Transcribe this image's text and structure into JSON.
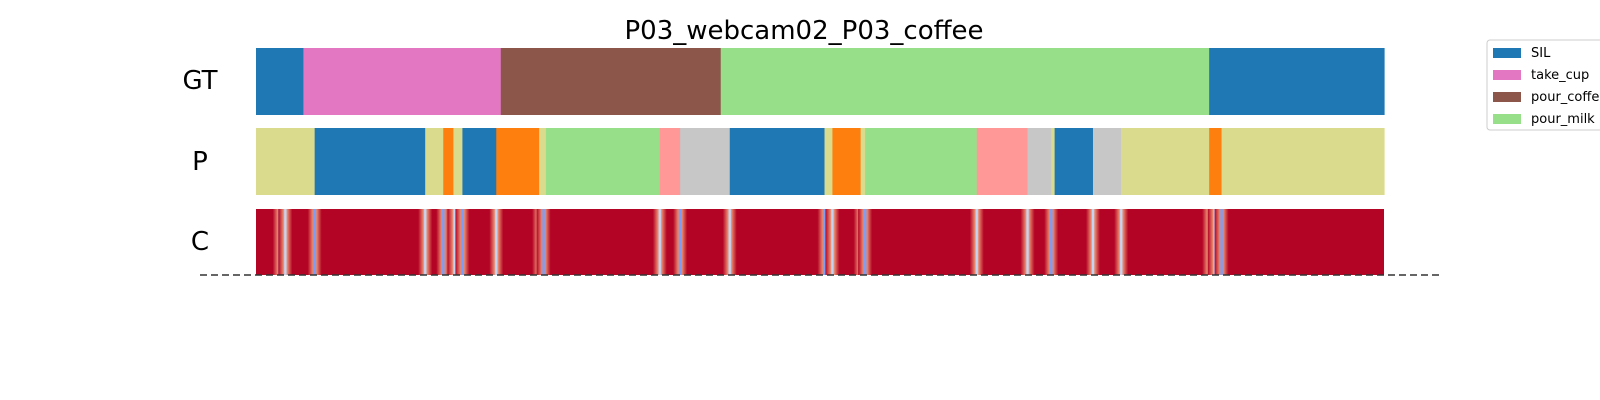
{
  "chart_data": {
    "type": "segmentation",
    "title": "P03_webcam02_P03_coffee",
    "x_domain": [
      0,
      1000
    ],
    "rows": [
      {
        "label": "GT",
        "segments": [
          {
            "start": 0,
            "end": 42,
            "label": "SIL",
            "color": "#1f77b4"
          },
          {
            "start": 42,
            "end": 217,
            "label": "take_cup",
            "color": "#e377c2"
          },
          {
            "start": 217,
            "end": 412,
            "label": "pour_coffee",
            "color": "#8c564b"
          },
          {
            "start": 412,
            "end": 845,
            "label": "pour_milk",
            "color": "#98df8a"
          },
          {
            "start": 845,
            "end": 1000,
            "label": "SIL",
            "color": "#1f77b4"
          }
        ]
      },
      {
        "label": "P",
        "segments": [
          {
            "start": 0,
            "end": 52,
            "color": "#dbdb8d"
          },
          {
            "start": 52,
            "end": 150,
            "color": "#1f77b4"
          },
          {
            "start": 150,
            "end": 166,
            "color": "#dbdb8d"
          },
          {
            "start": 166,
            "end": 175,
            "color": "#ff7f0e"
          },
          {
            "start": 175,
            "end": 183,
            "color": "#dbdb8d"
          },
          {
            "start": 183,
            "end": 213,
            "color": "#1f77b4"
          },
          {
            "start": 213,
            "end": 251,
            "color": "#ff7f0e"
          },
          {
            "start": 251,
            "end": 257,
            "color": "#dbdb8d"
          },
          {
            "start": 257,
            "end": 358,
            "color": "#98df8a"
          },
          {
            "start": 358,
            "end": 376,
            "color": "#ff9896"
          },
          {
            "start": 376,
            "end": 420,
            "color": "#c7c7c7"
          },
          {
            "start": 420,
            "end": 504,
            "color": "#1f77b4"
          },
          {
            "start": 504,
            "end": 511,
            "color": "#dbdb8d"
          },
          {
            "start": 511,
            "end": 536,
            "color": "#ff7f0e"
          },
          {
            "start": 536,
            "end": 540,
            "color": "#dbdb8d"
          },
          {
            "start": 540,
            "end": 639,
            "color": "#98df8a"
          },
          {
            "start": 639,
            "end": 684,
            "color": "#ff9896"
          },
          {
            "start": 684,
            "end": 705,
            "color": "#c7c7c7"
          },
          {
            "start": 705,
            "end": 708,
            "color": "#dbdb8d"
          },
          {
            "start": 708,
            "end": 742,
            "color": "#1f77b4"
          },
          {
            "start": 742,
            "end": 767,
            "color": "#c7c7c7"
          },
          {
            "start": 767,
            "end": 845,
            "color": "#dbdb8d"
          },
          {
            "start": 845,
            "end": 856,
            "color": "#ff7f0e"
          },
          {
            "start": 856,
            "end": 1000,
            "color": "#dbdb8d"
          }
        ]
      },
      {
        "label": "C",
        "base_color": "#b40426",
        "dips": [
          {
            "at": 21,
            "color": "#7b9ff9"
          },
          {
            "at": 26,
            "color": "#c4d5f3"
          },
          {
            "at": 52,
            "color": "#7b9ff9"
          },
          {
            "at": 150,
            "color": "#c4d5f3"
          },
          {
            "at": 166,
            "color": "#7b9ff9"
          },
          {
            "at": 176,
            "color": "#c4d5f3"
          },
          {
            "at": 183,
            "color": "#7b9ff9"
          },
          {
            "at": 213,
            "color": "#c4d5f3"
          },
          {
            "at": 251,
            "color": "#c4d5f3"
          },
          {
            "at": 255,
            "color": "#7b9ff9"
          },
          {
            "at": 358,
            "color": "#c4d5f3"
          },
          {
            "at": 376,
            "color": "#7b9ff9"
          },
          {
            "at": 420,
            "color": "#c4d5f3"
          },
          {
            "at": 504,
            "color": "#7b9ff9"
          },
          {
            "at": 511,
            "color": "#c4d5f3"
          },
          {
            "at": 536,
            "color": "#c4d5f3"
          },
          {
            "at": 540,
            "color": "#7b9ff9"
          },
          {
            "at": 639,
            "color": "#c4d5f3"
          },
          {
            "at": 684,
            "color": "#c4d5f3"
          },
          {
            "at": 705,
            "color": "#7b9ff9"
          },
          {
            "at": 742,
            "color": "#c4d5f3"
          },
          {
            "at": 767,
            "color": "#c4d5f3"
          },
          {
            "at": 845,
            "color": "#7b9ff9"
          },
          {
            "at": 850,
            "color": "#c4d5f3"
          },
          {
            "at": 856,
            "color": "#7b9ff9"
          }
        ]
      }
    ],
    "legend": {
      "placement": "top-right",
      "entries": [
        {
          "label": "SIL",
          "color": "#1f77b4"
        },
        {
          "label": "take_cup",
          "color": "#e377c2"
        },
        {
          "label": "pour_coffee",
          "color": "#8c564b"
        },
        {
          "label": "pour_milk",
          "color": "#98df8a"
        }
      ]
    }
  }
}
